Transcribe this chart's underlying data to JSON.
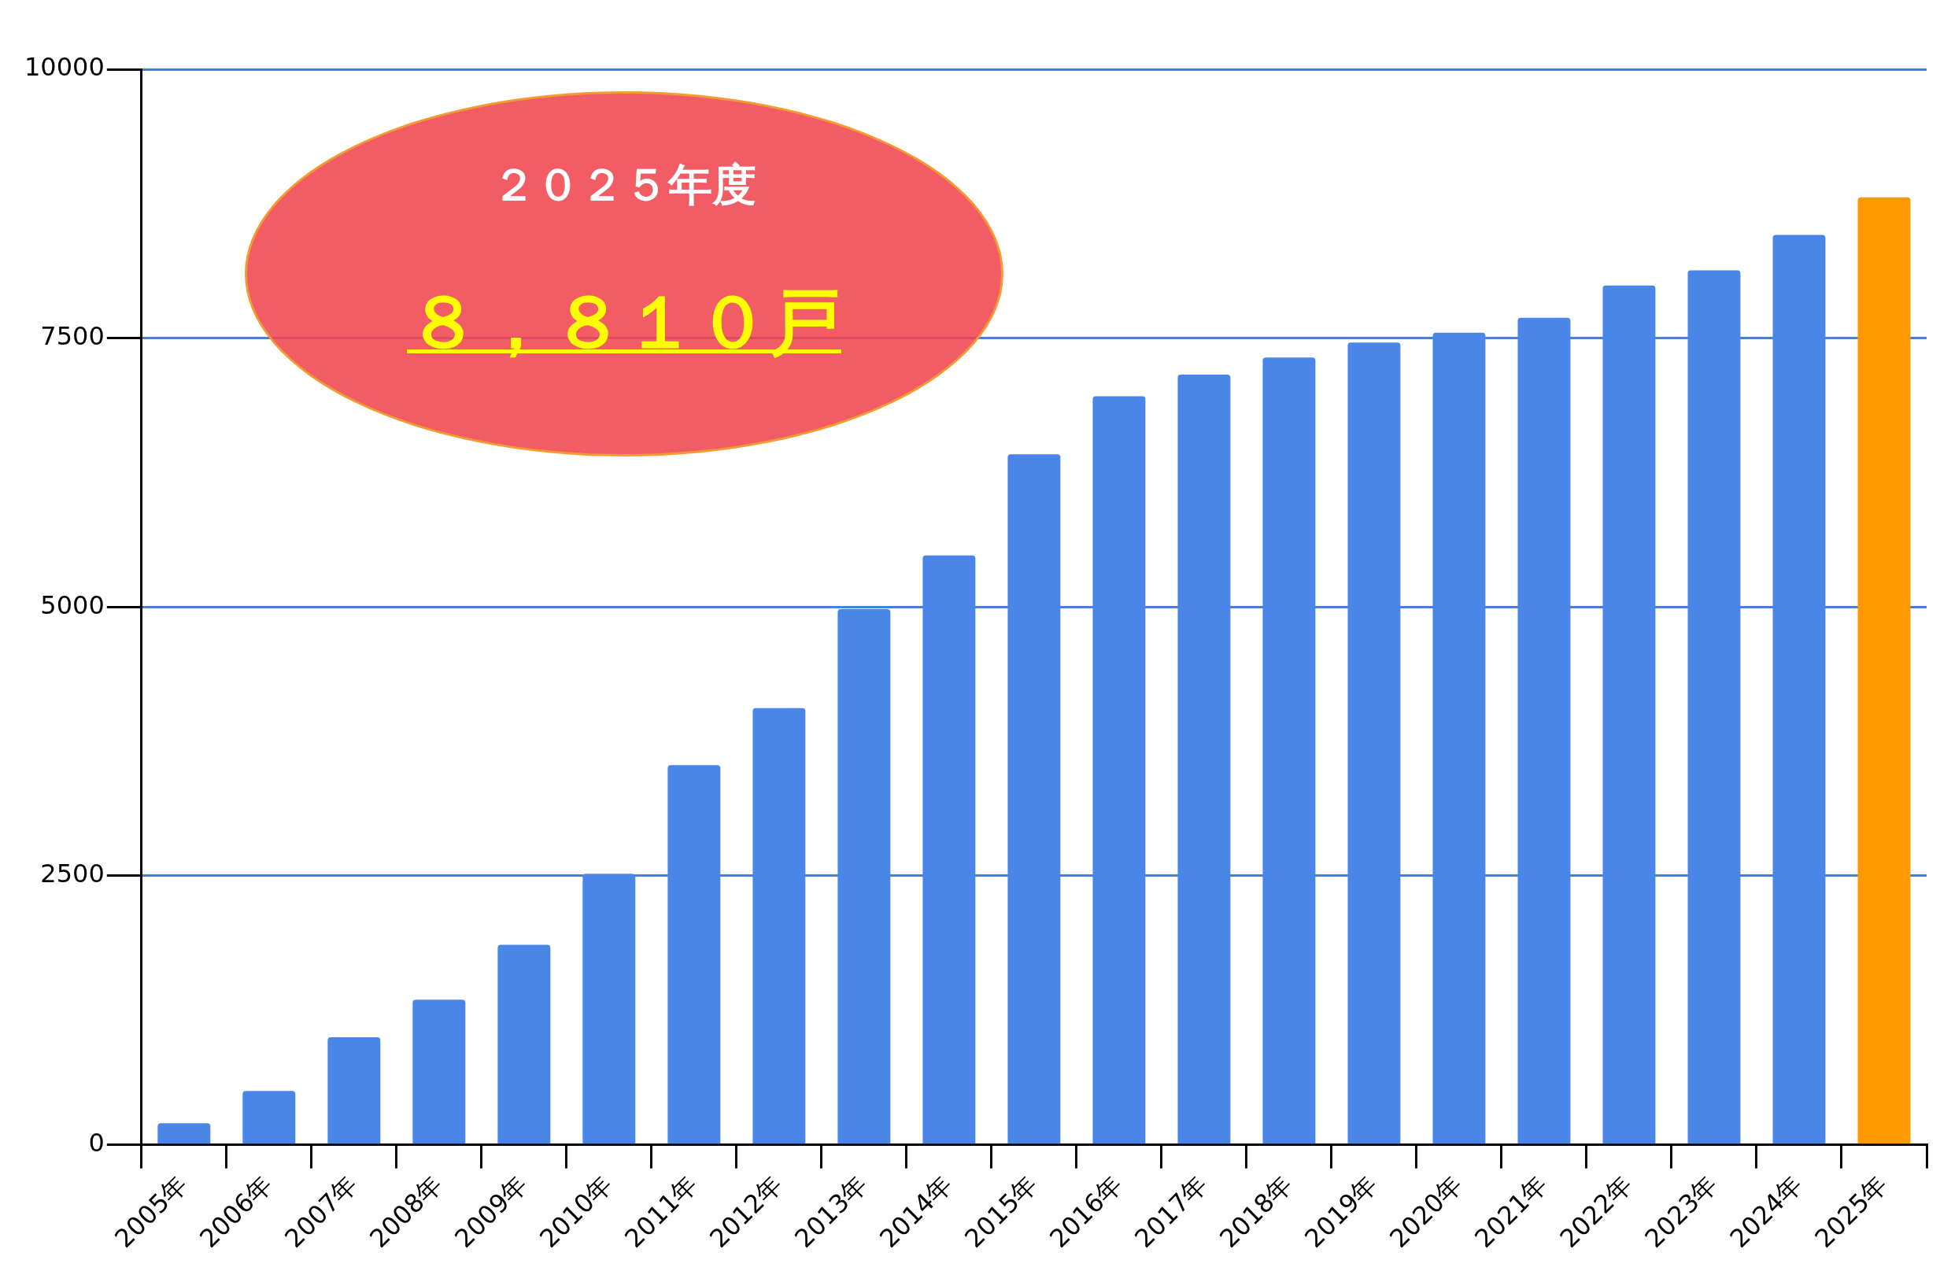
{
  "chart_data": {
    "type": "bar",
    "categories": [
      "2005年",
      "2006年",
      "2007年",
      "2008年",
      "2009年",
      "2010年",
      "2011年",
      "2012年",
      "2013年",
      "2014年",
      "2015年",
      "2016年",
      "2017年",
      "2018年",
      "2019年",
      "2020年",
      "2021年",
      "2022年",
      "2023年",
      "2024年",
      "2025年"
    ],
    "values": [
      200,
      500,
      1000,
      1350,
      1860,
      2520,
      3530,
      4060,
      4980,
      5480,
      6420,
      6960,
      7160,
      7320,
      7460,
      7550,
      7690,
      7990,
      8130,
      8460,
      8810
    ],
    "colors": [
      "#4a86e8",
      "#4a86e8",
      "#4a86e8",
      "#4a86e8",
      "#4a86e8",
      "#4a86e8",
      "#4a86e8",
      "#4a86e8",
      "#4a86e8",
      "#4a86e8",
      "#4a86e8",
      "#4a86e8",
      "#4a86e8",
      "#4a86e8",
      "#4a86e8",
      "#4a86e8",
      "#4a86e8",
      "#4a86e8",
      "#4a86e8",
      "#4a86e8",
      "#ff9900"
    ],
    "ylim": [
      0,
      10000
    ],
    "yticks": [
      0,
      2500,
      5000,
      7500,
      10000
    ],
    "grid": "y",
    "annotations": [
      "２０２５年度",
      "８，８１０戸"
    ]
  }
}
